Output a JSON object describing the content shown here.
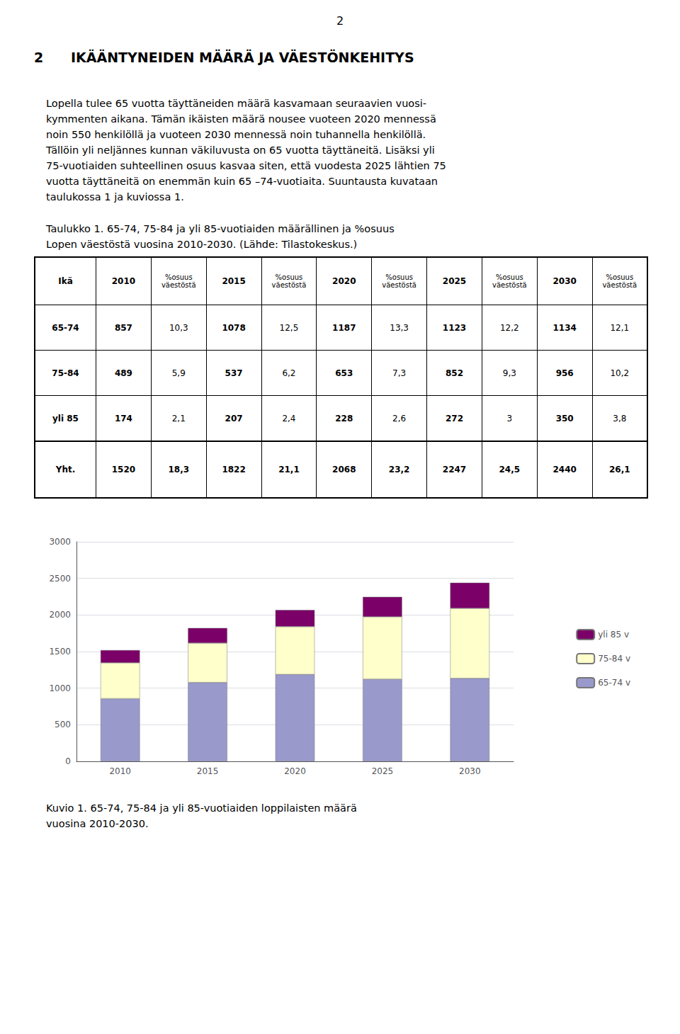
{
  "page_number": "2",
  "section_number": "2",
  "section_heading": "IKÄÄNTYNEIDEN MÄÄRÄ JA VÄESTÖNKEHITYS",
  "body_text": "Lopella tulee 65 vuotta täyttäneiden määrä kasvamaan seuraavien vuosi-\nkymmenten aikana. Tämän ikäisten määrä nousee vuoteen 2020 mennessä\nnoin 550 henkilöllä ja vuoteen 2030 mennessä noin tuhannella henkilöllä.\nTällöin yli neljännes kunnan väkiluvusta on 65 vuotta täyttäneitä. Lisäksi yli\n75-vuotiaiden suhteellinen osuus kasvaa siten, että vuodesta 2025 lähtien 75\nvuotta täyttäneitä on enemmän kuin 65 –74-vuotiaita. Suuntausta kuvataan\ntaulukossa 1 ja kuviossa 1.",
  "table": {
    "caption": "Taulukko 1. 65-74, 75-84 ja yli 85-vuotiaiden määrällinen ja %osuus\nLopen väestöstä vuosina 2010-2030. (Lähde: Tilastokeskus.)",
    "header": [
      "Ikä",
      "2010",
      "%osuus\nväestöstä",
      "2015",
      "%osuus\nväestöstä",
      "2020",
      "%osuus\nväestöstä",
      "2025",
      "%osuus\nväestöstä",
      "2030",
      "%osuus\nväestöstä"
    ],
    "rows": [
      [
        "65-74",
        "857",
        "10,3",
        "1078",
        "12,5",
        "1187",
        "13,3",
        "1123",
        "12,2",
        "1134",
        "12,1"
      ],
      [
        "75-84",
        "489",
        "5,9",
        "537",
        "6,2",
        "653",
        "7,3",
        "852",
        "9,3",
        "956",
        "10,2"
      ],
      [
        "yli 85",
        "174",
        "2,1",
        "207",
        "2,4",
        "228",
        "2,6",
        "272",
        "3",
        "350",
        "3,8"
      ],
      [
        "Yht.",
        "1520",
        "18,3",
        "1822",
        "21,1",
        "2068",
        "23,2",
        "2247",
        "24,5",
        "2440",
        "26,1"
      ]
    ]
  },
  "chart_data": {
    "type": "bar",
    "title": "Kuvio 1. 65-74, 75-84 ja yli 85-vuotiaiden loppilaisten määrä\nvuosina 2010-2030.",
    "categories": [
      "2010",
      "2015",
      "2020",
      "2025",
      "2030"
    ],
    "series": [
      {
        "name": "65-74 v",
        "color": "#9999CC",
        "values": [
          857,
          1078,
          1187,
          1123,
          1134
        ]
      },
      {
        "name": "75-84 v",
        "color": "#FFFFCC",
        "values": [
          489,
          537,
          653,
          852,
          956
        ]
      },
      {
        "name": "yli 85 v",
        "color": "#7B0067",
        "values": [
          174,
          207,
          228,
          272,
          350
        ]
      }
    ],
    "stacked": true,
    "ylim": [
      0,
      3000
    ],
    "yticks": [
      0,
      500,
      1000,
      1500,
      2000,
      2500,
      3000
    ],
    "grid": true,
    "legend": "right"
  }
}
